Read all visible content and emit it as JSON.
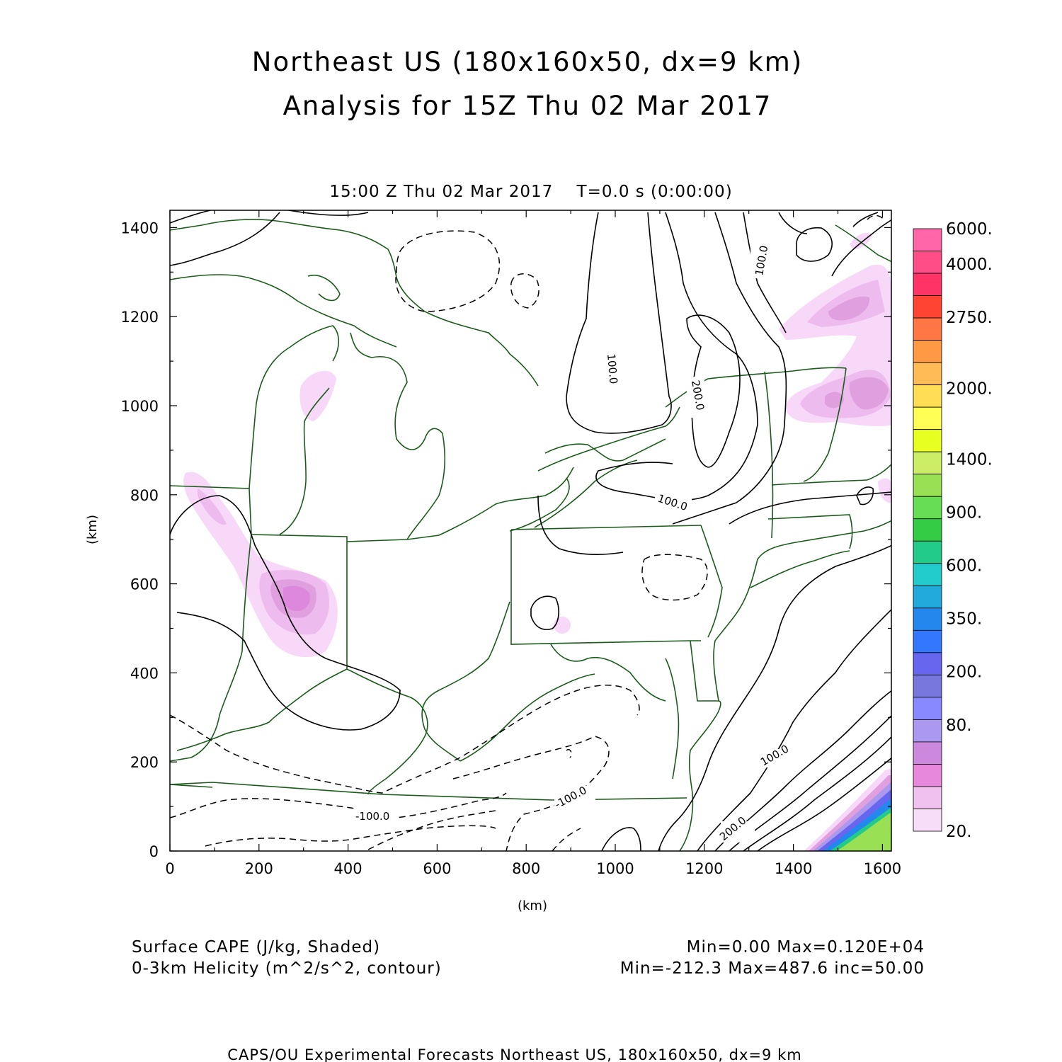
{
  "header": {
    "title_line1": "Northeast US (180x160x50, dx=9 km)",
    "title_line2": "Analysis for 15Z Thu 02 Mar 2017",
    "time_line": "15:00 Z Thu 02 Mar 2017    T=0.0 s (0:00:00)"
  },
  "axes": {
    "x_label": "(km)",
    "y_label": "(km)",
    "x_ticks": [
      "0",
      "200",
      "400",
      "600",
      "800",
      "1000",
      "1200",
      "1400",
      "1600"
    ],
    "y_ticks": [
      "0",
      "200",
      "400",
      "600",
      "800",
      "1000",
      "1200",
      "1400"
    ]
  },
  "colorbar": {
    "labels": [
      "6000.",
      "4000.",
      "2750.",
      "2000.",
      "1400.",
      "900.",
      "600.",
      "350.",
      "200.",
      "80.",
      "20."
    ],
    "colors": [
      "#ff66aa",
      "#ff4d88",
      "#ff3366",
      "#ff4433",
      "#ff7744",
      "#ff9944",
      "#ffbb55",
      "#ffdd55",
      "#ffff55",
      "#e8ff22",
      "#ccee66",
      "#99e055",
      "#66dd55",
      "#33cc44",
      "#22cc88",
      "#22cccc",
      "#22aadd",
      "#2288ee",
      "#3377ff",
      "#6666ee",
      "#7777dd",
      "#8888ff",
      "#aa99ee",
      "#cc88dd",
      "#e888dd",
      "#f0c0ee",
      "#f8ddf8"
    ]
  },
  "annotations": {
    "field1": "Surface CAPE (J/kg, Shaded)",
    "field2": "0-3km Helicity (m^2/s^2, contour)",
    "stats1": "Min=0.00 Max=0.120E+04",
    "stats2": "Min=-212.3 Max=487.6 inc=50.00",
    "footer": "CAPS/OU Experimental Forecasts  Northeast US, 180x160x50, dx=9 km"
  },
  "contour_labels": [
    "100.0",
    "200.0",
    "100.0",
    "100.0",
    "100.0",
    "200.0",
    "-100.0",
    "-100.0"
  ]
}
